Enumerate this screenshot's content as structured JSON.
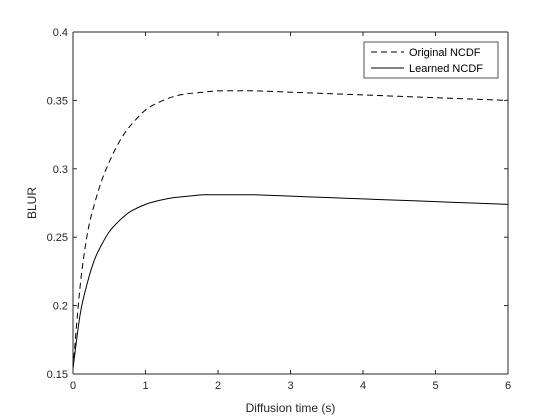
{
  "chart_data": {
    "type": "line",
    "title": "",
    "xlabel": "Diffusion time (s)",
    "ylabel": "BLUR",
    "xlim": [
      0,
      6
    ],
    "ylim": [
      0.15,
      0.4
    ],
    "x_ticks": [
      0,
      1,
      2,
      3,
      4,
      5,
      6
    ],
    "x_tick_labels": [
      "0",
      "1",
      "2",
      "3",
      "4",
      "5",
      "6"
    ],
    "y_ticks": [
      0.15,
      0.2,
      0.25,
      0.3,
      0.35,
      0.4
    ],
    "y_tick_labels": [
      "0.15",
      "0.2",
      "0.25",
      "0.3",
      "0.35",
      "0.4"
    ],
    "grid": false,
    "legend_position": "top-right",
    "series": [
      {
        "name": "Original NCDF",
        "style": "dashed",
        "color": "#000000",
        "x": [
          0,
          0.1,
          0.2,
          0.3,
          0.4,
          0.5,
          0.6,
          0.7,
          0.8,
          1.0,
          1.2,
          1.4,
          1.6,
          1.8,
          2.0,
          2.25,
          2.5,
          3.0,
          3.5,
          4.0,
          4.5,
          5.0,
          5.5,
          6.0
        ],
        "y": [
          0.154,
          0.215,
          0.253,
          0.275,
          0.292,
          0.305,
          0.316,
          0.325,
          0.332,
          0.343,
          0.349,
          0.353,
          0.355,
          0.356,
          0.357,
          0.357,
          0.357,
          0.356,
          0.355,
          0.354,
          0.353,
          0.352,
          0.351,
          0.35
        ]
      },
      {
        "name": "Learned NCDF",
        "style": "solid",
        "color": "#000000",
        "x": [
          0,
          0.1,
          0.2,
          0.3,
          0.4,
          0.5,
          0.6,
          0.7,
          0.8,
          1.0,
          1.2,
          1.4,
          1.6,
          1.8,
          2.0,
          2.25,
          2.5,
          3.0,
          3.5,
          4.0,
          4.5,
          5.0,
          5.5,
          6.0
        ],
        "y": [
          0.154,
          0.194,
          0.217,
          0.234,
          0.245,
          0.254,
          0.26,
          0.265,
          0.269,
          0.274,
          0.277,
          0.279,
          0.28,
          0.281,
          0.281,
          0.281,
          0.281,
          0.28,
          0.279,
          0.278,
          0.277,
          0.276,
          0.275,
          0.274
        ]
      }
    ]
  }
}
